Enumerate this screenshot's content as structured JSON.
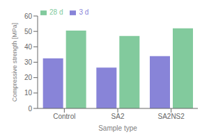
{
  "chart_data": {
    "type": "bar",
    "categories": [
      "Control",
      "SA2",
      "SA2NS2"
    ],
    "series": [
      {
        "name": "3 d",
        "color": "#8884d8",
        "values": [
          32.5,
          26.5,
          34.0
        ]
      },
      {
        "name": "28 d",
        "color": "#82ca9d",
        "values": [
          50.5,
          47.0,
          52.0
        ]
      }
    ],
    "xlabel": "Sample type",
    "ylabel": "Compressive strength [MPa]",
    "ylim": [
      0,
      60
    ],
    "yticks": [
      0,
      10,
      20,
      30,
      40,
      50,
      60
    ],
    "grid": false,
    "legend": "upper left"
  }
}
